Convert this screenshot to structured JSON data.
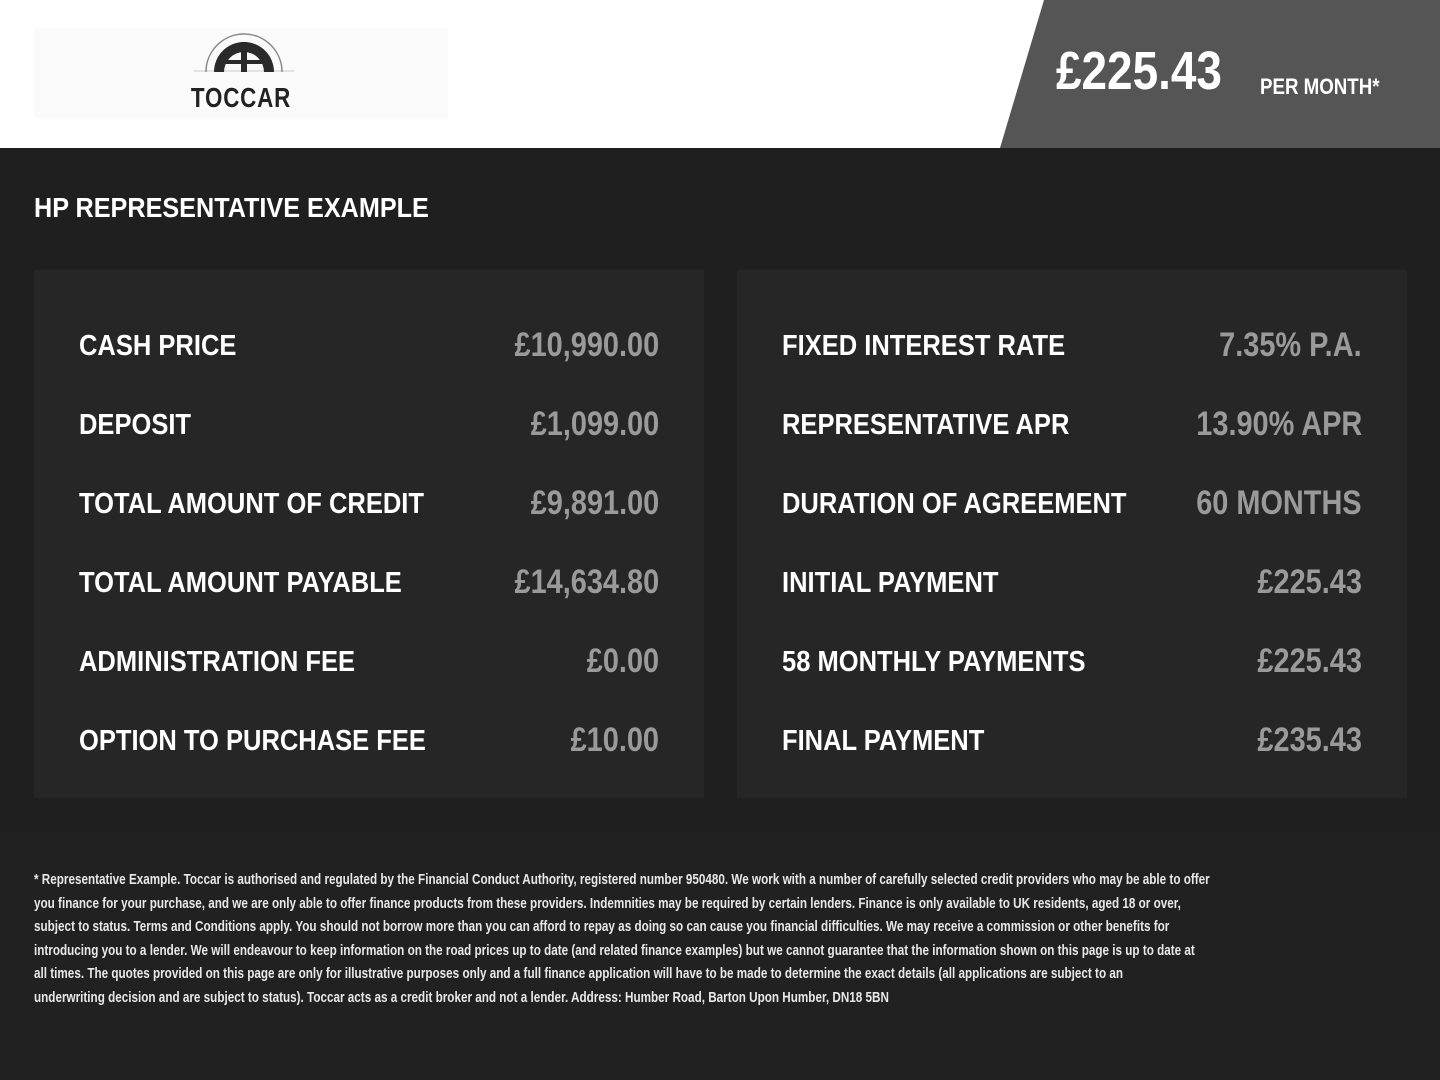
{
  "header": {
    "logo_text": "TOCCAR",
    "price": "£225.43",
    "per_month": "PER MONTH*"
  },
  "section_title": "HP REPRESENTATIVE EXAMPLE",
  "left_panel": [
    {
      "label": "CASH PRICE",
      "value": "£10,990.00"
    },
    {
      "label": "DEPOSIT",
      "value": "£1,099.00"
    },
    {
      "label": "TOTAL AMOUNT OF CREDIT",
      "value": "£9,891.00"
    },
    {
      "label": "TOTAL AMOUNT PAYABLE",
      "value": "£14,634.80"
    },
    {
      "label": "ADMINISTRATION FEE",
      "value": "£0.00"
    },
    {
      "label": "OPTION TO PURCHASE FEE",
      "value": "£10.00"
    }
  ],
  "right_panel": [
    {
      "label": "FIXED INTEREST RATE",
      "value": "7.35% P.A."
    },
    {
      "label": "REPRESENTATIVE APR",
      "value": "13.90% APR"
    },
    {
      "label": "DURATION OF AGREEMENT",
      "value": "60 MONTHS"
    },
    {
      "label": "INITIAL PAYMENT",
      "value": "£225.43"
    },
    {
      "label": "58 MONTHLY PAYMENTS",
      "value": "£225.43"
    },
    {
      "label": "FINAL PAYMENT",
      "value": "£235.43"
    }
  ],
  "disclaimer_lines": [
    "* Representative Example. Toccar is authorised and regulated by the Financial Conduct Authority, registered number 950480. We work with a number of carefully selected credit providers who may be able to offer",
    "you finance for your purchase, and we are only able to offer finance products from these providers. Indemnities may be required by certain lenders. Finance is only available to UK residents, aged 18 or over,",
    "subject to status. Terms and Conditions apply. You should not borrow more than you can afford to repay as doing so can cause you financial difficulties. We may receive a commission or other benefits for",
    "introducing you to a lender. We will endeavour to keep information on the road prices up to date (and related finance examples) but we cannot guarantee that the information shown on this page is up to date at",
    "all times. The quotes provided on this page are only for illustrative purposes only and a full finance application will have to be made to determine the exact details (all applications are subject to an",
    "underwriting decision and are subject to status). Toccar acts as a credit broker and not a lender. Address: Humber Road, Barton Upon Humber, DN18 5BN"
  ],
  "colors": {
    "header_bg": "#ffffff",
    "page_bg": "#1f1f1f",
    "panel_bg": "#262626",
    "price_banner": "#555555",
    "value_text": "#9a9a9a"
  }
}
